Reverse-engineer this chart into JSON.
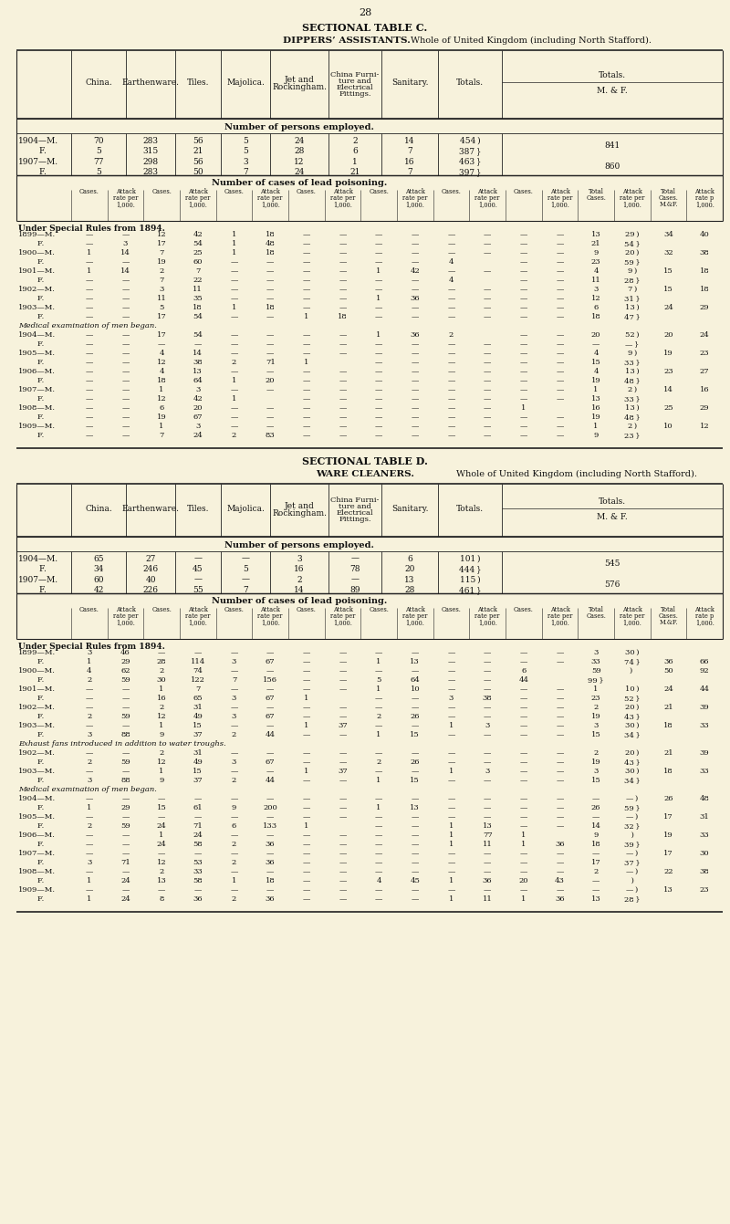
{
  "bg_color": "#f7f2dc",
  "page_num": "28",
  "table_c_title": "SECTIONAL TABLE C.",
  "table_c_subtitle": "DIPPERS’ ASSISTANTS.  Whole of United Kingdom (including North Stafford).",
  "table_d_title": "SECTIONAL TABLE D.",
  "table_d_subtitle": "WARE CLEANERS.  Whole of United Kingdom (including North Stafford).",
  "text_color": "#111111",
  "line_color": "#222222"
}
